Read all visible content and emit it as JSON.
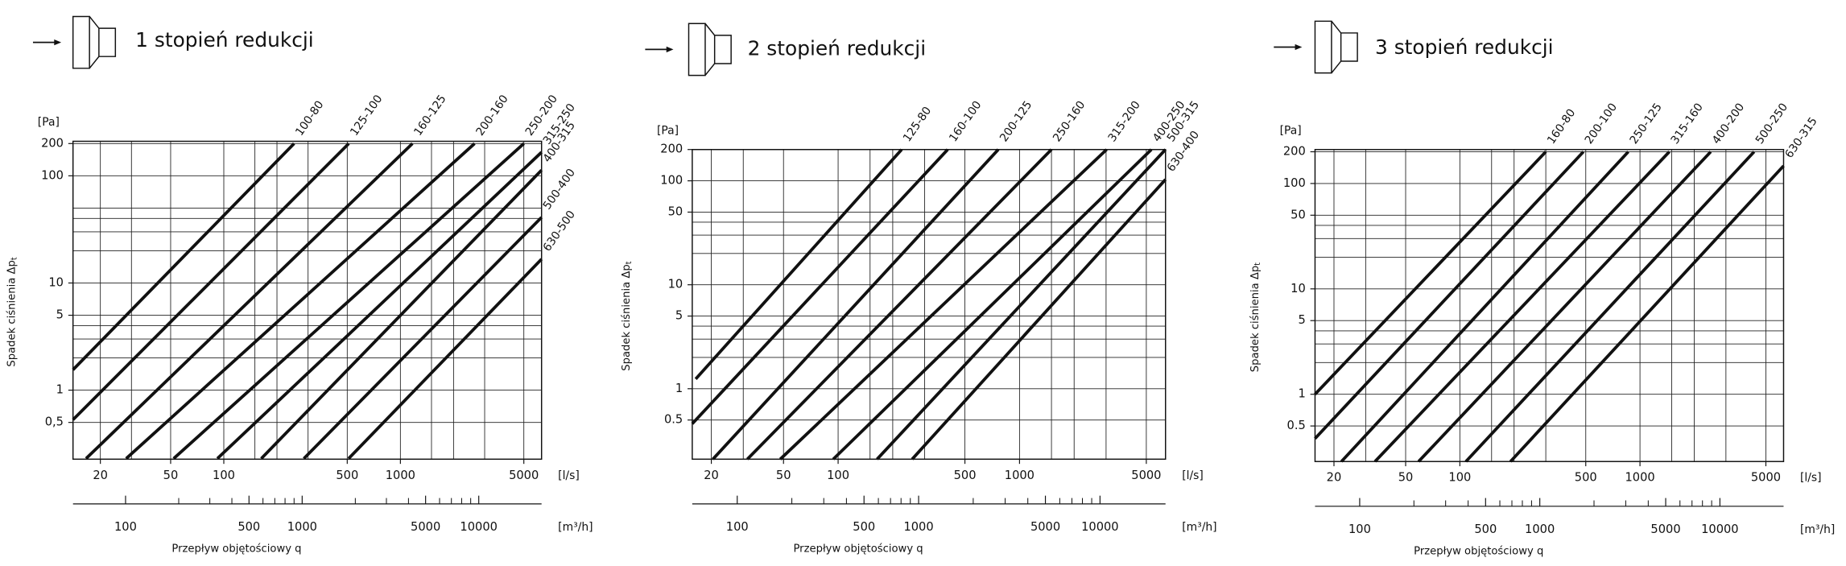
{
  "chart_data": [
    {
      "type": "line",
      "title": "1 stopień redukcji",
      "log_x": true,
      "log_y": true,
      "y_label": "Spadek ciśnienia Δp",
      "y_label_sub": "t",
      "y_unit": "[Pa]",
      "x_label": "Przepływ objętościowy q",
      "x_unit": "[l/s]",
      "x2_unit": "[m³/h]",
      "xlim": [
        14,
        6300
      ],
      "ylim": [
        0.227,
        210
      ],
      "x2lim": [
        50.4,
        22680
      ],
      "xticks": [
        20,
        50,
        100,
        500,
        1000,
        5000
      ],
      "yticks": [
        {
          "value": 0.5,
          "label": "0,5"
        },
        1,
        5,
        10,
        100,
        200
      ],
      "x2ticks": [
        100,
        500,
        1000,
        5000,
        10000
      ],
      "xgrid": [
        20,
        30,
        50,
        100,
        150,
        200,
        300,
        500,
        1000,
        1500,
        2000,
        3000,
        5000
      ],
      "ygrid": [
        0.5,
        1,
        2,
        3,
        4,
        5,
        10,
        20,
        30,
        40,
        50,
        100,
        200
      ],
      "x2minor": [
        200,
        300,
        400,
        600,
        700,
        800,
        900,
        2000,
        3000,
        4000,
        6000,
        7000,
        8000,
        9000
      ],
      "grid": true,
      "color": "#111111",
      "series": [
        {
          "name": "100-80",
          "x": [
            14,
            250
          ],
          "values": [
            1.55,
            200
          ]
        },
        {
          "name": "125-100",
          "x": [
            14,
            510
          ],
          "values": [
            0.53,
            200
          ]
        },
        {
          "name": "160-125",
          "x": [
            16.6,
            1170
          ],
          "values": [
            0.23,
            200
          ]
        },
        {
          "name": "200-160",
          "x": [
            28,
            2630
          ],
          "values": [
            0.23,
            200
          ]
        },
        {
          "name": "250-200",
          "x": [
            52,
            5000
          ],
          "values": [
            0.23,
            200
          ]
        },
        {
          "name": "315-250",
          "x": [
            92,
            6300
          ],
          "values": [
            0.23,
            166
          ]
        },
        {
          "name": "400-315",
          "x": [
            163,
            6300
          ],
          "values": [
            0.23,
            113
          ]
        },
        {
          "name": "500-400",
          "x": [
            284,
            6300
          ],
          "values": [
            0.23,
            41
          ]
        },
        {
          "name": "630-500",
          "x": [
            509,
            6300
          ],
          "values": [
            0.23,
            16.7
          ]
        }
      ]
    },
    {
      "type": "line",
      "title": "2 stopień redukcji",
      "log_x": true,
      "log_y": true,
      "y_label": "Spadek ciśnienia Δp",
      "y_label_sub": "t",
      "y_unit": "[Pa]",
      "x_label": "Przepływ objętościowy q",
      "x_unit": "[l/s]",
      "x2_unit": "[m³/h]",
      "xlim": [
        15.7,
        6380
      ],
      "ylim": [
        0.21,
        200
      ],
      "x2lim": [
        56.5,
        22970
      ],
      "xticks": [
        20,
        50,
        100,
        500,
        1000,
        5000
      ],
      "yticks": [
        0.5,
        1,
        5,
        10,
        50,
        100,
        200
      ],
      "x2ticks": [
        100,
        500,
        1000,
        5000,
        10000
      ],
      "xgrid": [
        20,
        30,
        50,
        100,
        150,
        200,
        300,
        500,
        1000,
        1500,
        2000,
        3000,
        5000
      ],
      "ygrid": [
        0.5,
        1,
        2,
        3,
        4,
        5,
        10,
        20,
        30,
        40,
        50,
        100,
        200
      ],
      "x2minor": [
        200,
        300,
        400,
        600,
        700,
        800,
        900,
        2000,
        3000,
        4000,
        6000,
        7000,
        8000,
        9000
      ],
      "grid": true,
      "color": "#111111",
      "series": [
        {
          "name": "125-80",
          "x": [
            16.4,
            224
          ],
          "values": [
            1.24,
            200
          ]
        },
        {
          "name": "160-100",
          "x": [
            15.7,
            402
          ],
          "values": [
            0.46,
            200
          ]
        },
        {
          "name": "200-125",
          "x": [
            20.4,
            764
          ],
          "values": [
            0.21,
            200
          ]
        },
        {
          "name": "250-160",
          "x": [
            31.6,
            1500
          ],
          "values": [
            0.21,
            200
          ]
        },
        {
          "name": "315-200",
          "x": [
            48,
            3020
          ],
          "values": [
            0.21,
            200
          ]
        },
        {
          "name": "400-250",
          "x": [
            94,
            5330
          ],
          "values": [
            0.21,
            200
          ]
        },
        {
          "name": "500-315",
          "x": [
            164,
            6380
          ],
          "values": [
            0.21,
            200
          ]
        },
        {
          "name": "630-400",
          "x": [
            256,
            6380
          ],
          "values": [
            0.21,
            103
          ]
        }
      ]
    },
    {
      "type": "line",
      "title": "3 stopień redukcji",
      "log_x": true,
      "log_y": true,
      "y_label": "Spadek ciśnienia Δp",
      "y_label_sub": "t",
      "y_unit": "[Pa]",
      "x_label": "Przepływ objętościowy q",
      "x_unit": "[l/s]",
      "x2_unit": "[m³/h]",
      "xlim": [
        15.7,
        6270
      ],
      "ylim": [
        0.23,
        210
      ],
      "x2lim": [
        56.5,
        22570
      ],
      "xticks": [
        20,
        50,
        100,
        500,
        1000,
        5000
      ],
      "yticks": [
        0.5,
        1,
        5,
        10,
        50,
        100,
        200
      ],
      "x2ticks": [
        100,
        500,
        1000,
        5000,
        10000
      ],
      "xgrid": [
        20,
        30,
        50,
        100,
        150,
        200,
        300,
        500,
        1000,
        1500,
        2000,
        3000,
        5000
      ],
      "ygrid": [
        0.5,
        1,
        2,
        3,
        4,
        5,
        10,
        20,
        30,
        40,
        50,
        100,
        200
      ],
      "x2minor": [
        200,
        300,
        400,
        600,
        700,
        800,
        900,
        2000,
        3000,
        4000,
        6000,
        7000,
        8000,
        9000
      ],
      "grid": true,
      "color": "#111111",
      "series": [
        {
          "name": "160-80",
          "x": [
            15.7,
            300
          ],
          "values": [
            1,
            200
          ]
        },
        {
          "name": "200-100",
          "x": [
            15.7,
            485
          ],
          "values": [
            0.38,
            200
          ]
        },
        {
          "name": "250-125",
          "x": [
            22,
            861
          ],
          "values": [
            0.23,
            200
          ]
        },
        {
          "name": "315-160",
          "x": [
            33.8,
            1456
          ],
          "values": [
            0.23,
            200
          ]
        },
        {
          "name": "400-200",
          "x": [
            59,
            2470
          ],
          "values": [
            0.23,
            200
          ]
        },
        {
          "name": "500-250",
          "x": [
            108,
            4300
          ],
          "values": [
            0.23,
            200
          ]
        },
        {
          "name": "630-315",
          "x": [
            191,
            6270
          ],
          "values": [
            0.23,
            147
          ]
        }
      ]
    }
  ]
}
